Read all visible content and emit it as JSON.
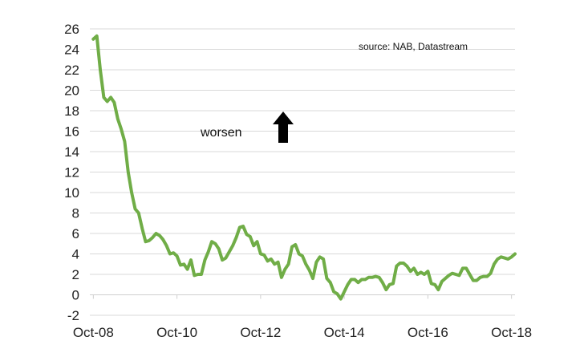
{
  "chart_data": {
    "type": "line",
    "title": "",
    "xlabel": "",
    "ylabel": "",
    "x_tick_labels": [
      "Oct-08",
      "Oct-10",
      "Oct-12",
      "Oct-14",
      "Oct-16",
      "Oct-18"
    ],
    "x_tick_dates": [
      "2008-10",
      "2010-10",
      "2012-10",
      "2014-10",
      "2016-10",
      "2018-10"
    ],
    "y_ticks": [
      -2,
      0,
      2,
      4,
      6,
      8,
      10,
      12,
      14,
      16,
      18,
      20,
      22,
      24,
      26
    ],
    "ylim": [
      -2,
      26
    ],
    "xlim": [
      "2008-09",
      "2018-11"
    ],
    "grid": true,
    "series": [
      {
        "color": "#70ad47",
        "x": [
          "2008-10",
          "2008-11",
          "2008-12",
          "2009-01",
          "2009-02",
          "2009-03",
          "2009-04",
          "2009-05",
          "2009-06",
          "2009-07",
          "2009-08",
          "2009-09",
          "2009-10",
          "2009-11",
          "2009-12",
          "2010-01",
          "2010-02",
          "2010-03",
          "2010-04",
          "2010-05",
          "2010-06",
          "2010-07",
          "2010-08",
          "2010-09",
          "2010-10",
          "2010-11",
          "2010-12",
          "2011-01",
          "2011-02",
          "2011-03",
          "2011-04",
          "2011-05",
          "2011-06",
          "2011-07",
          "2011-08",
          "2011-09",
          "2011-10",
          "2011-11",
          "2011-12",
          "2012-01",
          "2012-02",
          "2012-03",
          "2012-04",
          "2012-05",
          "2012-06",
          "2012-07",
          "2012-08",
          "2012-09",
          "2012-10",
          "2012-11",
          "2012-12",
          "2013-01",
          "2013-02",
          "2013-03",
          "2013-04",
          "2013-05",
          "2013-06",
          "2013-07",
          "2013-08",
          "2013-09",
          "2013-10",
          "2013-11",
          "2013-12",
          "2014-01",
          "2014-02",
          "2014-03",
          "2014-04",
          "2014-05",
          "2014-06",
          "2014-07",
          "2014-08",
          "2014-09",
          "2014-10",
          "2014-11",
          "2014-12",
          "2015-01",
          "2015-02",
          "2015-03",
          "2015-04",
          "2015-05",
          "2015-06",
          "2015-07",
          "2015-08",
          "2015-09",
          "2015-10",
          "2015-11",
          "2015-12",
          "2016-01",
          "2016-02",
          "2016-03",
          "2016-04",
          "2016-05",
          "2016-06",
          "2016-07",
          "2016-08",
          "2016-09",
          "2016-10",
          "2016-11",
          "2016-12",
          "2017-01",
          "2017-02",
          "2017-03",
          "2017-04",
          "2017-05",
          "2017-06",
          "2017-07",
          "2017-08",
          "2017-09",
          "2017-10",
          "2017-11",
          "2017-12",
          "2018-01",
          "2018-02",
          "2018-03",
          "2018-04",
          "2018-05",
          "2018-06",
          "2018-07",
          "2018-08",
          "2018-09",
          "2018-10",
          "2018-11"
        ],
        "values": [
          25.0,
          25.3,
          22.0,
          19.3,
          18.9,
          19.3,
          18.8,
          17.2,
          16.2,
          15.0,
          12.0,
          10.0,
          8.4,
          8.0,
          6.5,
          5.2,
          5.3,
          5.6,
          6.0,
          5.8,
          5.4,
          4.8,
          4.0,
          4.1,
          3.8,
          2.9,
          3.0,
          2.5,
          3.4,
          1.9,
          2.0,
          2.0,
          3.4,
          4.2,
          5.2,
          5.0,
          4.5,
          3.4,
          3.6,
          4.2,
          4.8,
          5.6,
          6.6,
          6.7,
          5.9,
          5.7,
          4.8,
          5.2,
          4.0,
          3.9,
          3.3,
          3.5,
          3.0,
          3.2,
          1.7,
          2.5,
          3.0,
          4.7,
          4.9,
          4.0,
          3.8,
          3.0,
          2.4,
          1.6,
          3.2,
          3.7,
          3.5,
          1.6,
          1.2,
          0.3,
          0.1,
          -0.4,
          0.3,
          1.0,
          1.5,
          1.5,
          1.2,
          1.5,
          1.5,
          1.7,
          1.7,
          1.8,
          1.7,
          1.2,
          0.5,
          1.0,
          1.1,
          2.8,
          3.1,
          3.1,
          2.8,
          2.3,
          2.6,
          2.0,
          2.2,
          2.0,
          2.3,
          1.1,
          1.0,
          0.5,
          1.3,
          1.6,
          1.9,
          2.1,
          2.0,
          1.9,
          2.6,
          2.6,
          2.0,
          1.4,
          1.4,
          1.7,
          1.8,
          1.8,
          2.1,
          3.0,
          3.5,
          3.7,
          3.6,
          3.5,
          3.7,
          4.0
        ]
      }
    ],
    "annotations": {
      "direction_label": "worsen",
      "direction_arrow": "up-arrow",
      "source": "source:  NAB, Datastream"
    }
  }
}
